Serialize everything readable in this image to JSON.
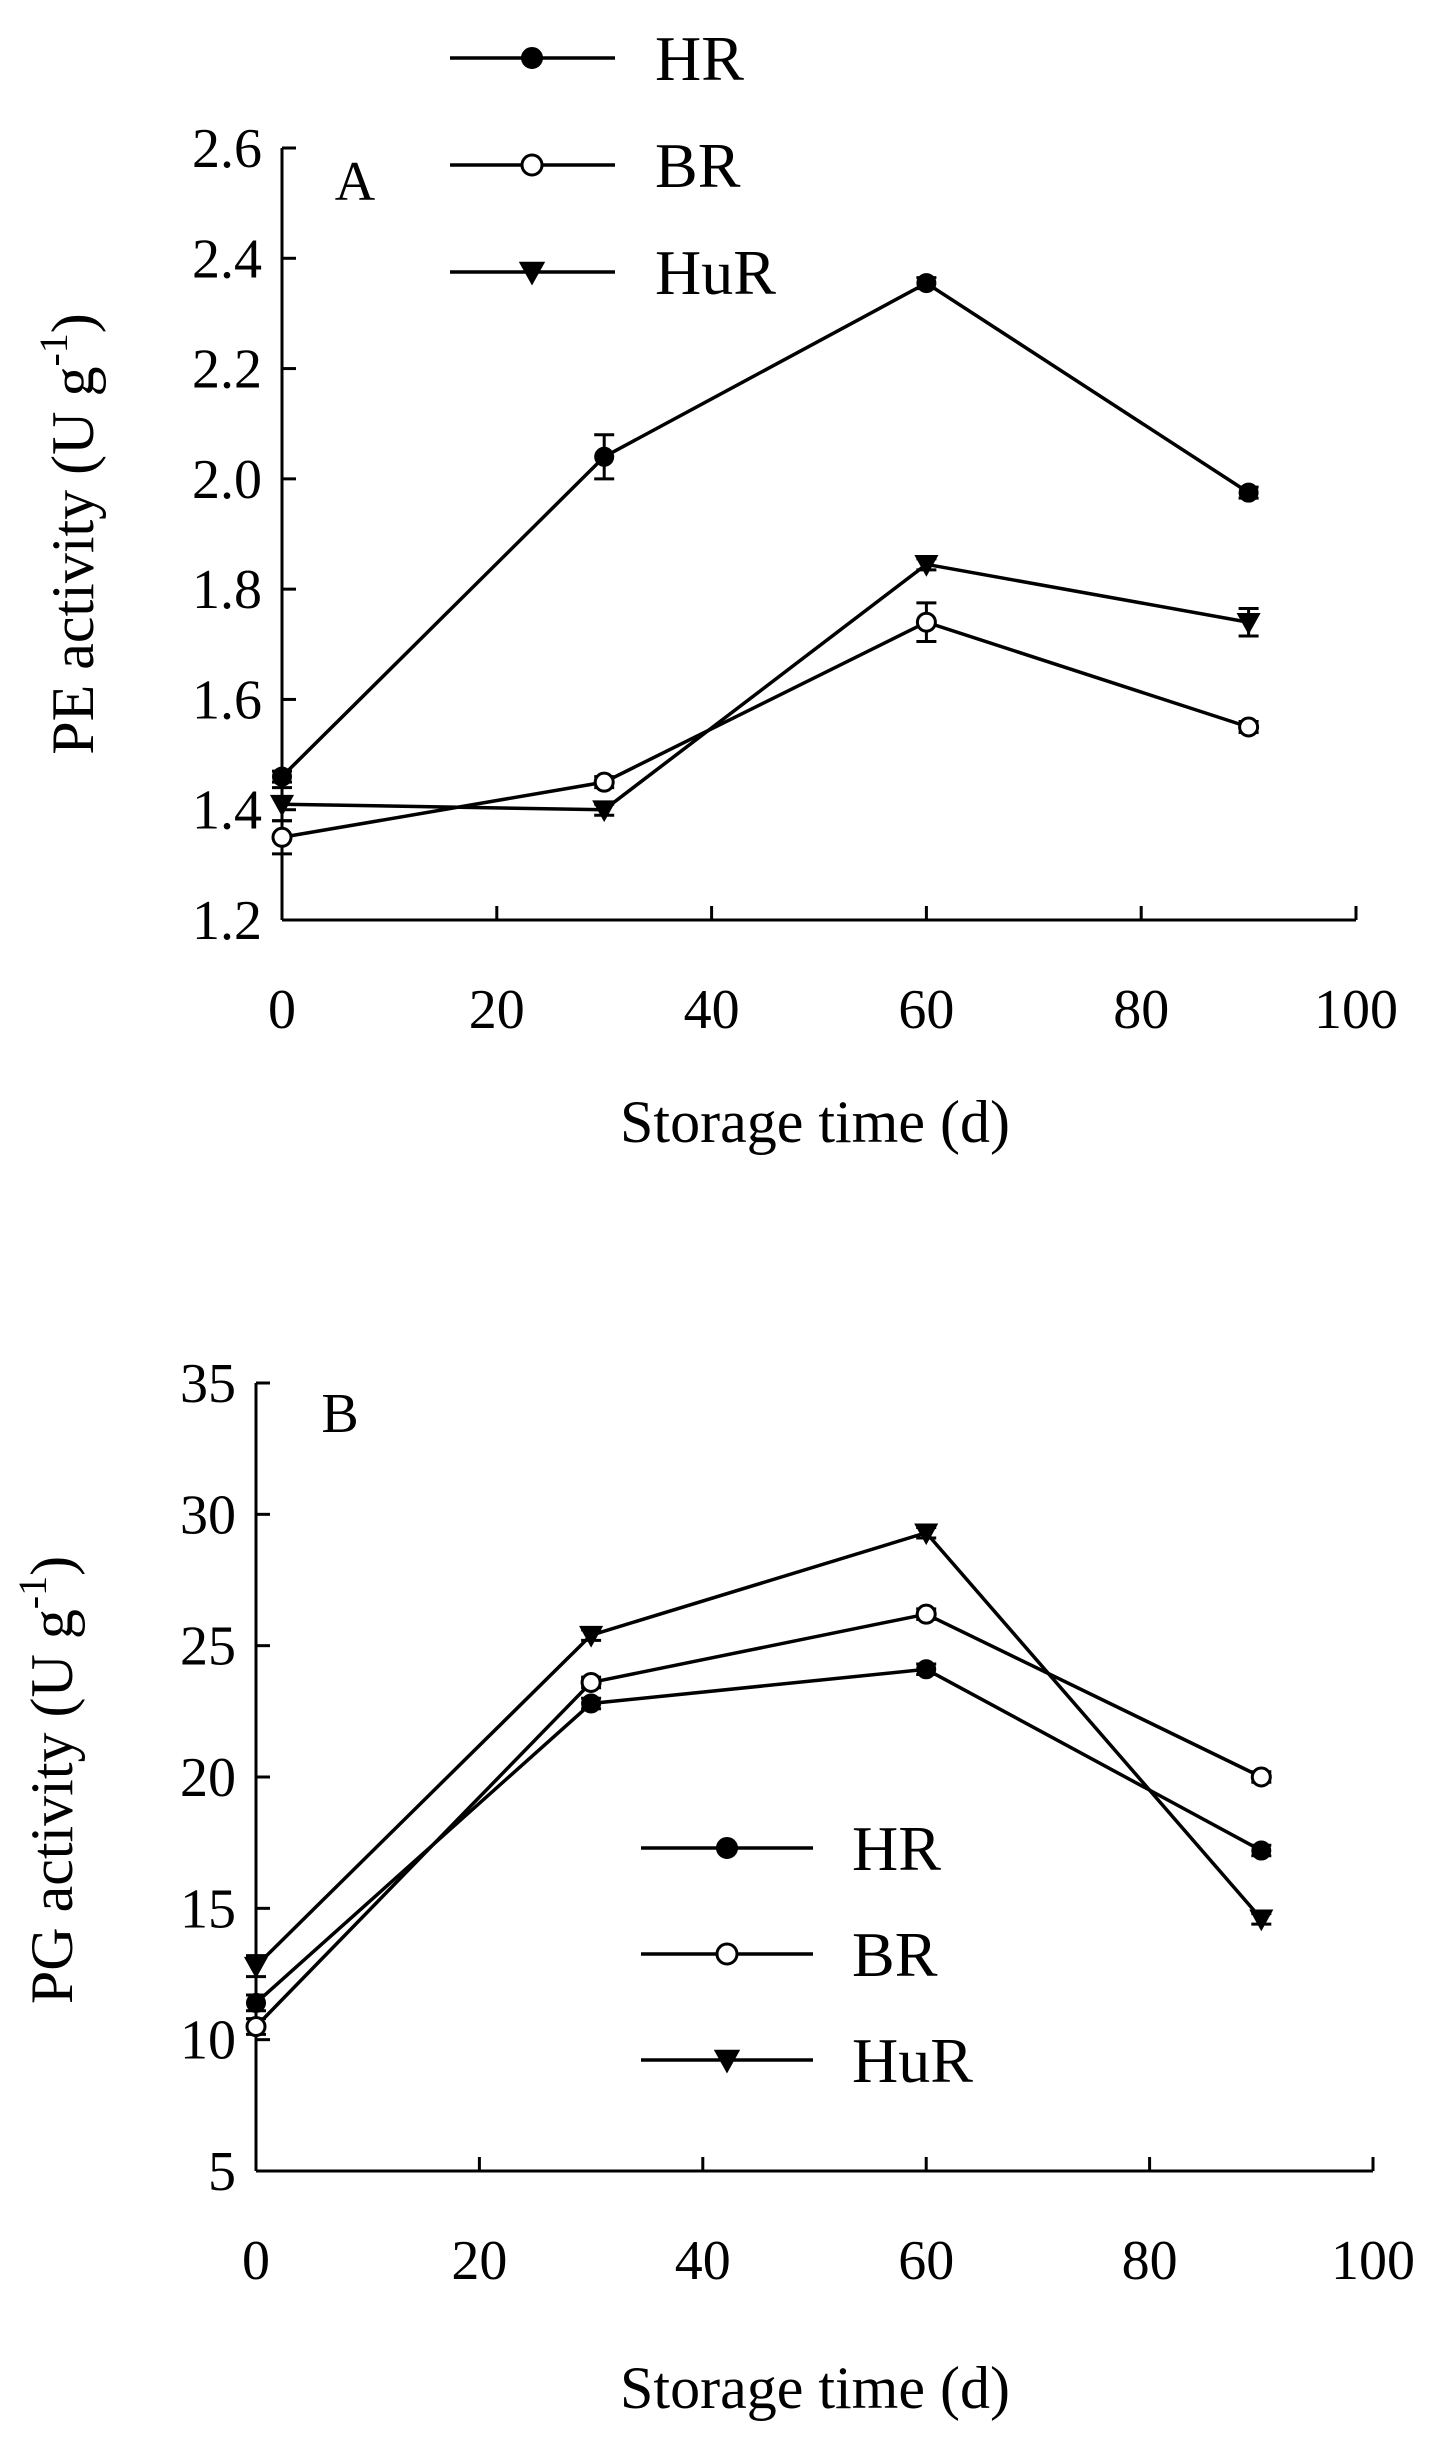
{
  "chart_data": [
    {
      "type": "line",
      "panel": "A",
      "title": "",
      "xlabel": "Storage time (d)",
      "ylabel": "PE activity (U g",
      "ylabel_sup": "-1",
      "ylabel_close": ")",
      "xlim": [
        0,
        100
      ],
      "ylim": [
        1.2,
        2.6
      ],
      "xticks": [
        0,
        20,
        40,
        60,
        80,
        100
      ],
      "xtick_labels": [
        "0",
        "20",
        "40",
        "60",
        "80",
        "100"
      ],
      "yticks": [
        1.2,
        1.4,
        1.6,
        1.8,
        2.0,
        2.2,
        2.4,
        2.6
      ],
      "ytick_labels": [
        "1.2",
        "1.4",
        "1.6",
        "1.8",
        "2.0",
        "2.2",
        "2.4",
        "2.6"
      ],
      "legend_position": "top-left, above plot",
      "x": [
        0,
        30,
        60,
        90
      ],
      "series": [
        {
          "name": "HR",
          "marker": "filled-circle",
          "values": [
            1.46,
            2.04,
            2.355,
            1.975
          ],
          "errors": [
            0.01,
            0.04,
            0.01,
            0.01
          ]
        },
        {
          "name": "BR",
          "marker": "open-circle",
          "values": [
            1.35,
            1.45,
            1.74,
            1.55
          ],
          "errors": [
            0.03,
            0.01,
            0.035,
            0.01
          ]
        },
        {
          "name": "HuR",
          "marker": "filled-triangle-down",
          "values": [
            1.41,
            1.4,
            1.845,
            1.74
          ],
          "errors": [
            0.03,
            0.01,
            0.01,
            0.025
          ]
        }
      ]
    },
    {
      "type": "line",
      "panel": "B",
      "title": "",
      "xlabel": "Storage time (d)",
      "ylabel": "PG activity (U g",
      "ylabel_sup": "-1",
      "ylabel_close": ")",
      "xlim": [
        0,
        100
      ],
      "ylim": [
        5,
        35
      ],
      "xticks": [
        0,
        20,
        40,
        60,
        80,
        100
      ],
      "xtick_labels": [
        "0",
        "20",
        "40",
        "60",
        "80",
        "100"
      ],
      "yticks": [
        5,
        10,
        15,
        20,
        25,
        30,
        35
      ],
      "ytick_labels": [
        "5",
        "10",
        "15",
        "20",
        "25",
        "30",
        "35"
      ],
      "legend_position": "center-right, inside plot",
      "x": [
        0,
        30,
        60,
        90
      ],
      "series": [
        {
          "name": "HR",
          "marker": "filled-circle",
          "values": [
            11.4,
            22.8,
            24.1,
            17.2
          ],
          "errors": [
            0.3,
            0.2,
            0.2,
            0.2
          ]
        },
        {
          "name": "BR",
          "marker": "open-circle",
          "values": [
            10.5,
            23.6,
            26.2,
            20.0
          ],
          "errors": [
            0.3,
            0.2,
            0.2,
            0.2
          ]
        },
        {
          "name": "HuR",
          "marker": "filled-triangle-down",
          "values": [
            12.8,
            25.4,
            29.3,
            14.6
          ],
          "errors": [
            0.4,
            0.2,
            0.2,
            0.2
          ]
        }
      ]
    }
  ]
}
